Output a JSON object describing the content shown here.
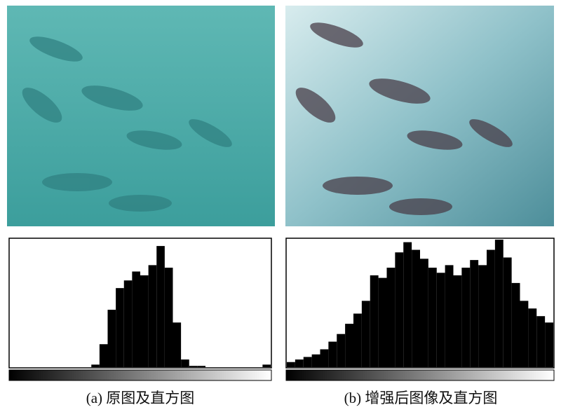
{
  "figure": {
    "panels": [
      {
        "caption": "(a) 原图及直方图"
      },
      {
        "caption": "(b) 增强后图像及直方图"
      }
    ]
  },
  "chart_data": [
    {
      "type": "histogram",
      "color": "#000000",
      "bins": [
        0,
        8,
        16,
        24,
        32,
        40,
        48,
        56,
        64,
        72,
        80,
        88,
        96,
        104,
        112,
        120,
        128,
        136,
        144,
        152,
        160,
        168,
        176,
        184,
        192,
        200,
        208,
        216,
        224,
        232,
        240,
        248,
        256
      ],
      "counts": [
        0,
        0,
        0,
        0,
        0,
        0,
        0,
        0,
        0,
        0,
        2,
        18,
        45,
        62,
        68,
        75,
        72,
        80,
        95,
        78,
        35,
        6,
        1,
        1,
        0,
        0,
        0,
        0,
        0,
        0,
        0,
        2
      ],
      "xlim": [
        0,
        256
      ],
      "ylim": [
        0,
        100
      ]
    },
    {
      "type": "histogram",
      "color": "#000000",
      "bins": [
        0,
        8,
        16,
        24,
        32,
        40,
        48,
        56,
        64,
        72,
        80,
        88,
        96,
        104,
        112,
        120,
        128,
        136,
        144,
        152,
        160,
        168,
        176,
        184,
        192,
        200,
        208,
        216,
        224,
        232,
        240,
        248,
        256
      ],
      "counts": [
        4,
        6,
        8,
        10,
        14,
        20,
        26,
        34,
        42,
        52,
        72,
        70,
        78,
        90,
        98,
        92,
        85,
        78,
        74,
        80,
        72,
        78,
        84,
        80,
        92,
        100,
        86,
        66,
        52,
        46,
        40,
        35
      ],
      "xlim": [
        0,
        256
      ],
      "ylim": [
        0,
        100
      ]
    }
  ]
}
